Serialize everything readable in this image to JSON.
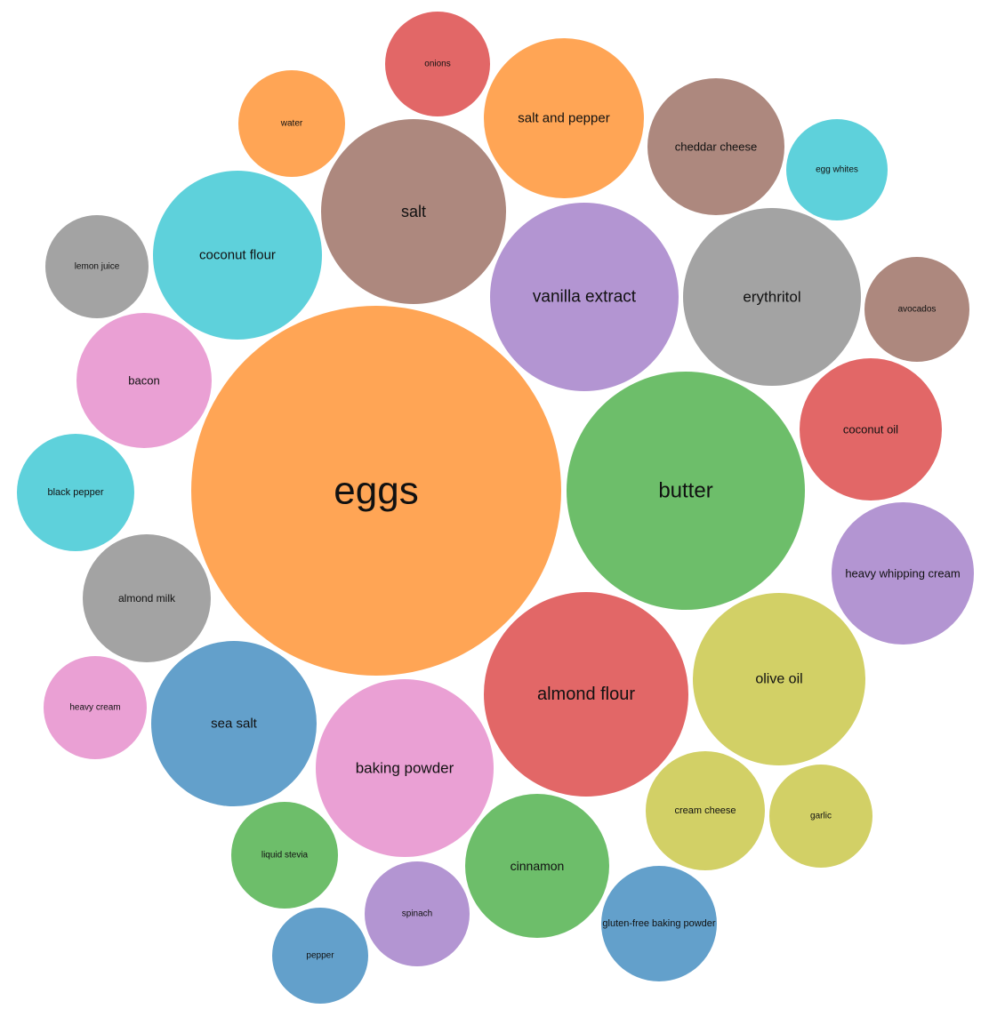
{
  "chart_data": {
    "type": "bubble",
    "title": "",
    "legend": "none",
    "bubbles": [
      {
        "label": "eggs",
        "color": "#ffa555"
      },
      {
        "label": "butter",
        "color": "#6dbe6a"
      },
      {
        "label": "almond flour",
        "color": "#e26767"
      },
      {
        "label": "vanilla extract",
        "color": "#b395d2"
      },
      {
        "label": "salt",
        "color": "#ad887e"
      },
      {
        "label": "baking powder",
        "color": "#eaa0d4"
      },
      {
        "label": "erythritol",
        "color": "#a3a3a3"
      },
      {
        "label": "olive oil",
        "color": "#d2d066"
      },
      {
        "label": "coconut flour",
        "color": "#5ed1db"
      },
      {
        "label": "sea salt",
        "color": "#63a0cb"
      },
      {
        "label": "salt and pepper",
        "color": "#ffa555"
      },
      {
        "label": "cinnamon",
        "color": "#6dbe6a"
      },
      {
        "label": "coconut oil",
        "color": "#e26767"
      },
      {
        "label": "heavy whipping cream",
        "color": "#b395d2"
      },
      {
        "label": "cheddar cheese",
        "color": "#ad887e"
      },
      {
        "label": "bacon",
        "color": "#eaa0d4"
      },
      {
        "label": "almond milk",
        "color": "#a3a3a3"
      },
      {
        "label": "cream cheese",
        "color": "#d2d066"
      },
      {
        "label": "black pepper",
        "color": "#5ed1db"
      },
      {
        "label": "gluten-free baking powder",
        "color": "#63a0cb"
      },
      {
        "label": "water",
        "color": "#ffa555"
      },
      {
        "label": "liquid stevia",
        "color": "#6dbe6a"
      },
      {
        "label": "onions",
        "color": "#e26767"
      },
      {
        "label": "spinach",
        "color": "#b395d2"
      },
      {
        "label": "avocados",
        "color": "#ad887e"
      },
      {
        "label": "heavy cream",
        "color": "#eaa0d4"
      },
      {
        "label": "lemon juice",
        "color": "#a3a3a3"
      },
      {
        "label": "garlic",
        "color": "#d2d066"
      },
      {
        "label": "egg whites",
        "color": "#5ed1db"
      },
      {
        "label": "pepper",
        "color": "#63a0cb"
      }
    ]
  }
}
